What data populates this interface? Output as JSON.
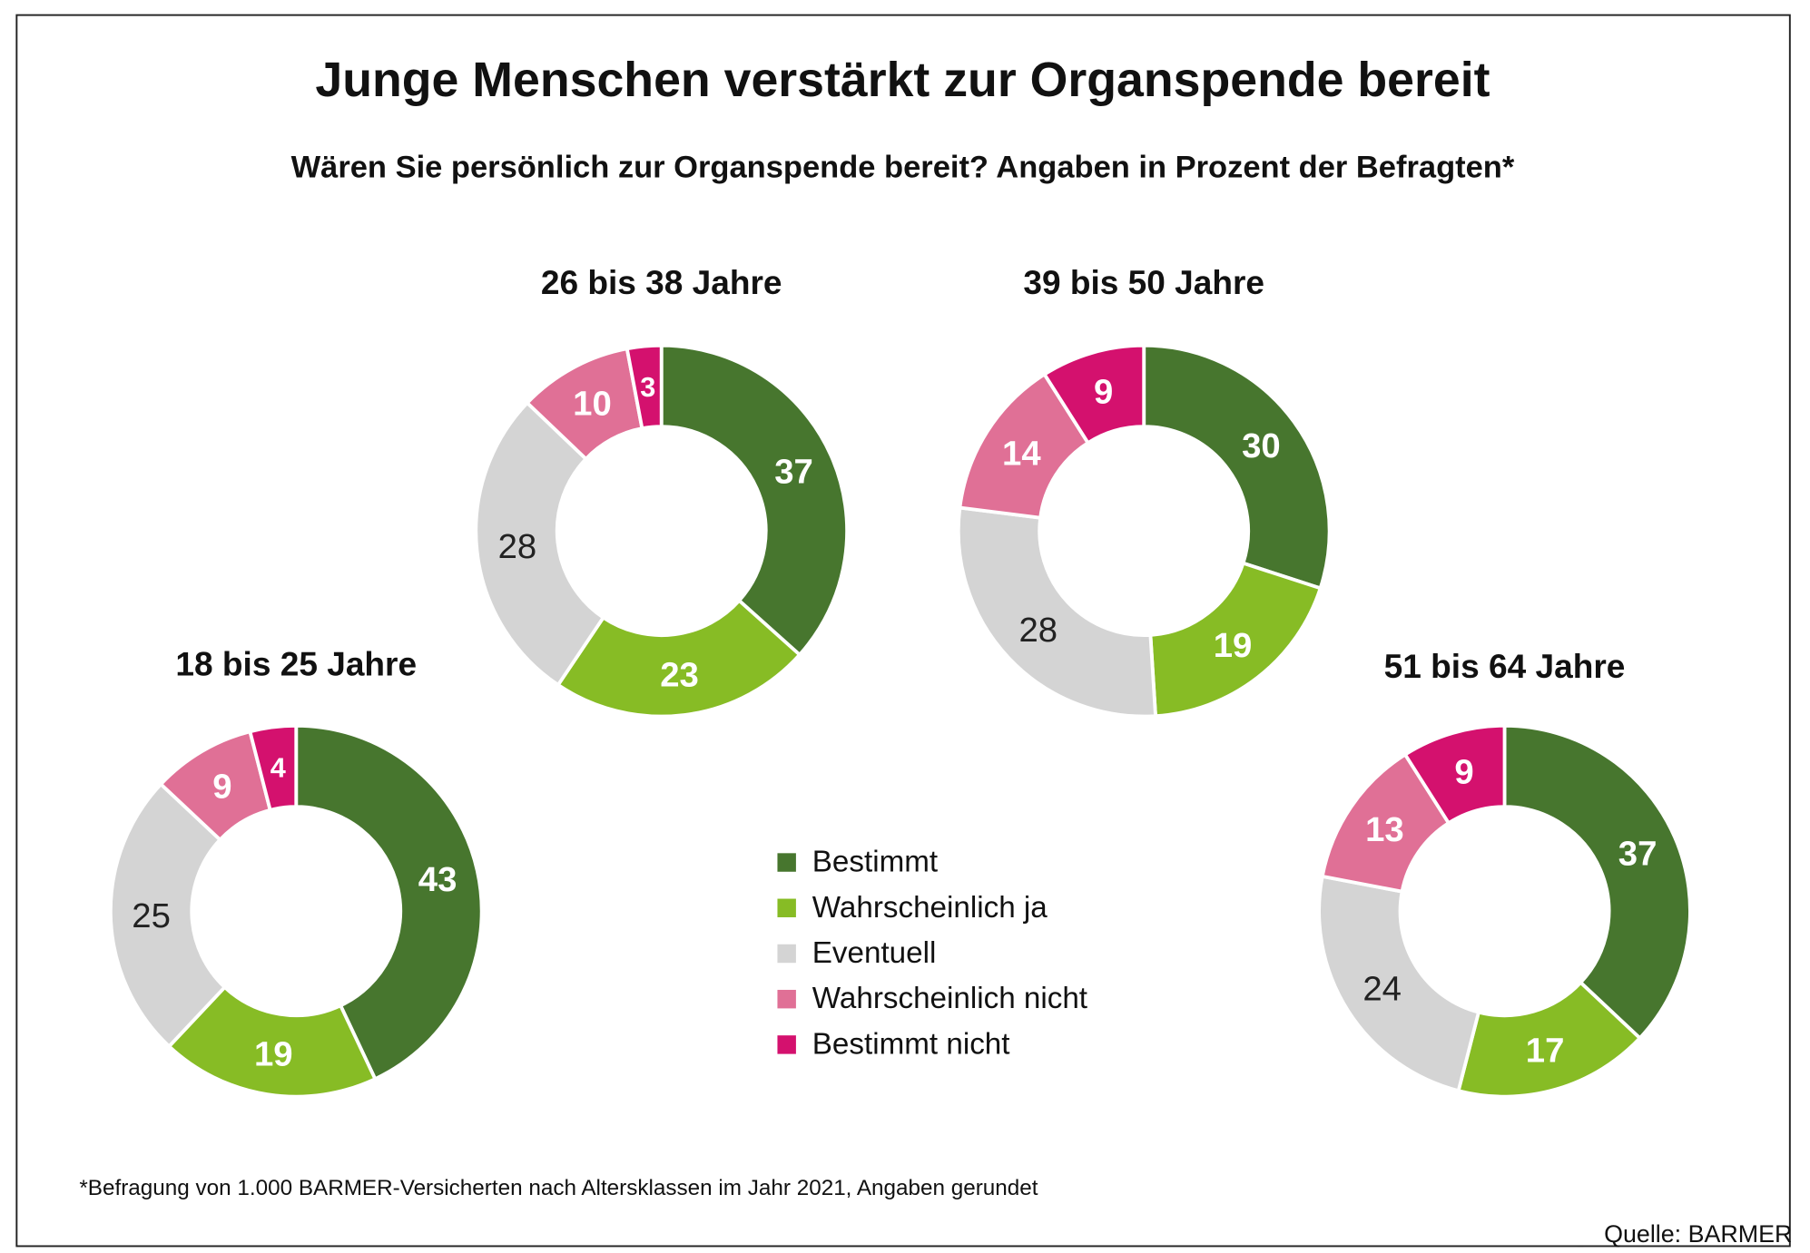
{
  "title": "Junge Menschen verstärkt zur Organspende bereit",
  "subtitle": "Wären Sie persönlich zur Organspende bereit? Angaben in Prozent der Befragten*",
  "footnote": "*Befragung von 1.000 BARMER-Versicherten nach Altersklassen im Jahr 2021, Angaben gerundet",
  "source": "Quelle: BARMER",
  "chart_data": [
    {
      "type": "donut",
      "title": "18 bis 25 Jahre",
      "categories": [
        "Bestimmt",
        "Wahrscheinlich ja",
        "Eventuell",
        "Wahrscheinlich nicht",
        "Bestimmt nicht"
      ],
      "colors": [
        "#47762e",
        "#87bc25",
        "#d4d4d4",
        "#e07096",
        "#d4116e"
      ],
      "values": [
        43,
        19,
        25,
        9,
        4
      ]
    },
    {
      "type": "donut",
      "title": "26 bis 38 Jahre",
      "categories": [
        "Bestimmt",
        "Wahrscheinlich ja",
        "Eventuell",
        "Wahrscheinlich nicht",
        "Bestimmt nicht"
      ],
      "colors": [
        "#47762e",
        "#87bc25",
        "#d4d4d4",
        "#e07096",
        "#d4116e"
      ],
      "values": [
        37,
        23,
        28,
        10,
        3
      ]
    },
    {
      "type": "donut",
      "title": "39 bis 50 Jahre",
      "categories": [
        "Bestimmt",
        "Wahrscheinlich ja",
        "Eventuell",
        "Wahrscheinlich nicht",
        "Bestimmt nicht"
      ],
      "colors": [
        "#47762e",
        "#87bc25",
        "#d4d4d4",
        "#e07096",
        "#d4116e"
      ],
      "values": [
        30,
        19,
        28,
        14,
        9
      ]
    },
    {
      "type": "donut",
      "title": "51 bis 64 Jahre",
      "categories": [
        "Bestimmt",
        "Wahrscheinlich ja",
        "Eventuell",
        "Wahrscheinlich nicht",
        "Bestimmt nicht"
      ],
      "colors": [
        "#47762e",
        "#87bc25",
        "#d4d4d4",
        "#e07096",
        "#d4116e"
      ],
      "values": [
        37,
        17,
        24,
        13,
        9
      ]
    }
  ]
}
